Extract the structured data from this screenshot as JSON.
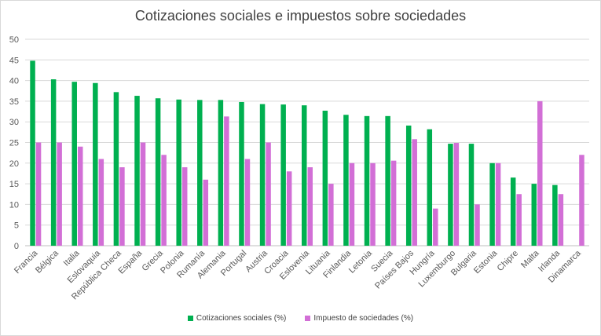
{
  "chart_data": {
    "type": "bar",
    "title": "Cotizaciones sociales e impuestos sobre sociedades",
    "xlabel": "",
    "ylabel": "",
    "ylim": [
      0,
      50
    ],
    "yticks": [
      0,
      5,
      10,
      15,
      20,
      25,
      30,
      35,
      40,
      45,
      50
    ],
    "grid": true,
    "legend_position": "bottom",
    "categories": [
      "Francia",
      "Bélgica",
      "Italia",
      "Eslovaquia",
      "República Checa",
      "España",
      "Grecia",
      "Polonia",
      "Rumanía",
      "Alemania",
      "Portugal",
      "Austria",
      "Croacia",
      "Eslovenia",
      "Lituania",
      "Finlandia",
      "Letonia",
      "Suecia",
      "Países Bajos",
      "Hungría",
      "Luxemburgo",
      "Bulgaria",
      "Estonia",
      "Chipre",
      "Malta",
      "Irlanda",
      "Dinamarca"
    ],
    "series": [
      {
        "name": "Cotizaciones sociales (%)",
        "color": "#00b050",
        "values": [
          44.8,
          40.3,
          39.7,
          39.4,
          37.2,
          36.3,
          35.7,
          35.4,
          35.3,
          35.3,
          34.8,
          34.3,
          34.2,
          34.0,
          32.7,
          31.7,
          31.4,
          31.4,
          29.1,
          28.2,
          24.7,
          24.7,
          20.0,
          16.5,
          15.0,
          14.7,
          0
        ]
      },
      {
        "name": "Impuesto de sociedades (%)",
        "color": "#d26fd6",
        "values": [
          25.0,
          25.0,
          24.0,
          21.0,
          19.0,
          25.0,
          22.0,
          19.0,
          16.0,
          31.3,
          21.0,
          25.0,
          18.0,
          19.0,
          15.0,
          20.0,
          20.0,
          20.6,
          25.8,
          9.0,
          24.9,
          10.0,
          20.0,
          12.5,
          35.0,
          12.5,
          22.0
        ]
      }
    ]
  }
}
